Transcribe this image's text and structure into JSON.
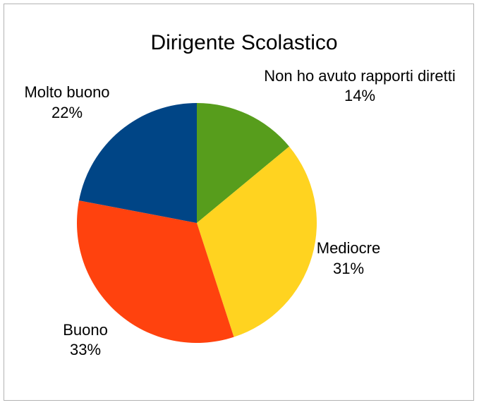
{
  "chart_data": {
    "type": "pie",
    "title": "Dirigente Scolastico",
    "legend": "none",
    "slices": [
      {
        "label": "Non ho avuto rapporti diretti",
        "value": 14,
        "value_label": "14%",
        "color": "#579d1c"
      },
      {
        "label": "Mediocre",
        "value": 31,
        "value_label": "31%",
        "color": "#ffd320"
      },
      {
        "label": "Buono",
        "value": 33,
        "value_label": "33%",
        "color": "#ff420e"
      },
      {
        "label": "Molto buono",
        "value": 22,
        "value_label": "22%",
        "color": "#004586"
      }
    ]
  }
}
